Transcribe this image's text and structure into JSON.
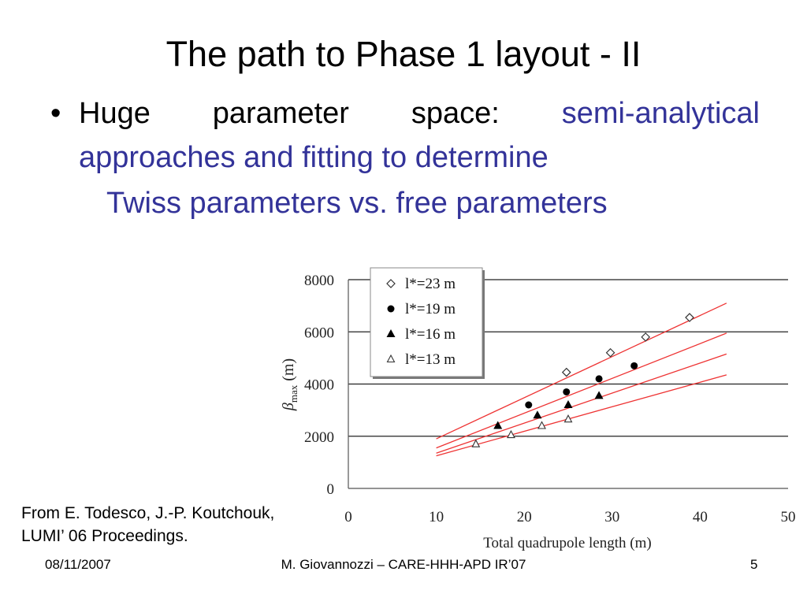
{
  "slide": {
    "title": "The path to Phase 1 layout - II",
    "bullet_symbol": "•",
    "bullet_words": [
      "Huge",
      "parameter",
      "space:",
      "semi-analytical"
    ],
    "bullet_line2": "approaches and fitting to determine",
    "subline": "Twiss parameters vs. free parameters",
    "citation_line1": "From E. Todesco, J.-P. Koutchouk,",
    "citation_line2": "LUMI’ 06 Proceedings.",
    "text_color_accent": "#333399",
    "footer": {
      "date": "08/11/2007",
      "center": "M. Giovannozzi – CARE-HHH-APD IR’07",
      "page": "5"
    }
  },
  "chart_data": {
    "type": "scatter",
    "xlabel": "Total quadrupole length (m)",
    "ylabel_symbol": "β",
    "ylabel_sub": "max",
    "ylabel_unit": " (m)",
    "xlim": [
      0,
      50
    ],
    "ylim": [
      0,
      8000
    ],
    "xticks": [
      0,
      10,
      20,
      30,
      40,
      50
    ],
    "yticks": [
      0,
      2000,
      4000,
      6000,
      8000
    ],
    "grid": "horizontal",
    "legend_position": "top-left",
    "fit_color": "#ee3333",
    "series": [
      {
        "name": "l*=23 m",
        "marker": "diamond-open",
        "points": [
          [
            24.8,
            4450
          ],
          [
            29.8,
            5200
          ],
          [
            33.8,
            5800
          ],
          [
            38.8,
            6550
          ]
        ],
        "fit": [
          [
            10,
            1900
          ],
          [
            43,
            7100
          ]
        ]
      },
      {
        "name": "l*=19 m",
        "marker": "circle-filled",
        "points": [
          [
            20.5,
            3200
          ],
          [
            24.8,
            3700
          ],
          [
            28.5,
            4200
          ],
          [
            32.5,
            4700
          ]
        ],
        "fit": [
          [
            10,
            1550
          ],
          [
            43,
            5950
          ]
        ]
      },
      {
        "name": "l*=16 m",
        "marker": "triangle-filled",
        "points": [
          [
            17.0,
            2400
          ],
          [
            21.5,
            2800
          ],
          [
            25.0,
            3200
          ],
          [
            28.5,
            3550
          ]
        ],
        "fit": [
          [
            10,
            1350
          ],
          [
            43,
            5150
          ]
        ]
      },
      {
        "name": "l*=13 m",
        "marker": "triangle-open",
        "points": [
          [
            14.5,
            1700
          ],
          [
            18.5,
            2050
          ],
          [
            22.0,
            2400
          ],
          [
            25.0,
            2650
          ]
        ],
        "fit": [
          [
            10,
            1250
          ],
          [
            43,
            4350
          ]
        ]
      }
    ]
  }
}
